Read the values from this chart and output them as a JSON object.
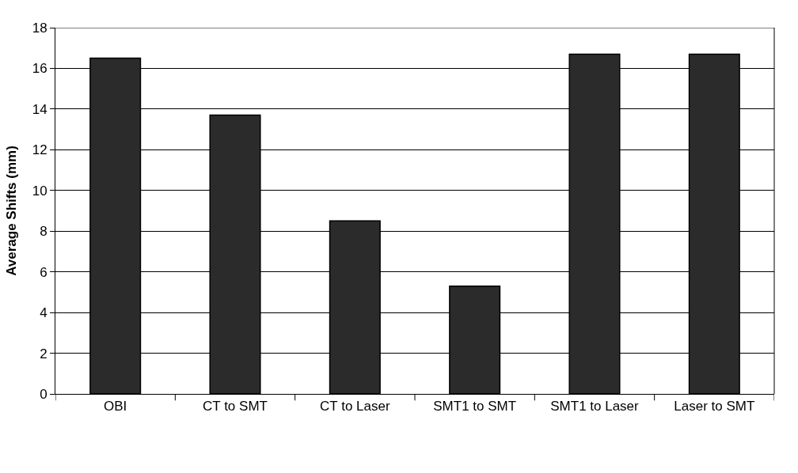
{
  "chart_data": {
    "type": "bar",
    "ylabel": "Average Shifts (mm)",
    "categories": [
      "OBI",
      "CT to SMT",
      "CT to Laser",
      "SMT1 to SMT",
      "SMT1 to Laser",
      "Laser to SMT"
    ],
    "values": [
      16.5,
      13.7,
      8.5,
      5.3,
      16.7,
      16.7
    ],
    "color": "#2b2b2b",
    "ylim": [
      0,
      18
    ],
    "yticks": [
      0,
      2,
      4,
      6,
      8,
      10,
      12,
      14,
      16,
      18
    ],
    "grid": "y"
  }
}
